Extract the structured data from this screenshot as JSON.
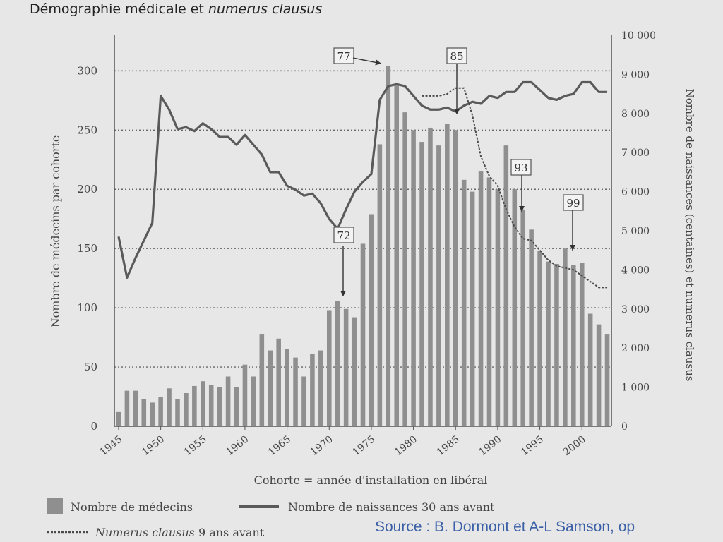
{
  "slide": {
    "title_plain": "Démographie médicale et ",
    "title_italic": "numerus clausus",
    "source": "Source : B. Dormont et A-L Samson, op"
  },
  "chart_data": {
    "type": "bar",
    "xlabel": "Cohorte = année d'installation en libéral",
    "ylabel": "Nombre de médecins par cohorte",
    "ylabel_right": "Nombre de naissances (centaines) et numerus clausus",
    "ylim": [
      0,
      330
    ],
    "ylim_right": [
      0,
      10000
    ],
    "yticks": [
      0,
      50,
      100,
      150,
      200,
      250,
      300
    ],
    "yticks_right": [
      0,
      1000,
      2000,
      3000,
      4000,
      5000,
      6000,
      7000,
      8000,
      9000,
      10000
    ],
    "yticks_right_labels": [
      "0",
      "1 000",
      "2 000",
      "3 000",
      "4 000",
      "5 000",
      "6 000",
      "7 000",
      "8 000",
      "9 000",
      "10 000"
    ],
    "xticks": [
      "1945",
      "1950",
      "1955",
      "1960",
      "1965",
      "1970",
      "1975",
      "1980",
      "1985",
      "1990",
      "1995",
      "2000"
    ],
    "grid": "dotted horizontal",
    "legend_position": "bottom",
    "years": [
      1945,
      1946,
      1947,
      1948,
      1949,
      1950,
      1951,
      1952,
      1953,
      1954,
      1955,
      1956,
      1957,
      1958,
      1959,
      1960,
      1961,
      1962,
      1963,
      1964,
      1965,
      1966,
      1967,
      1968,
      1969,
      1970,
      1971,
      1972,
      1973,
      1974,
      1975,
      1976,
      1977,
      1978,
      1979,
      1980,
      1981,
      1982,
      1983,
      1984,
      1985,
      1986,
      1987,
      1988,
      1989,
      1990,
      1991,
      1992,
      1993,
      1994,
      1995,
      1996,
      1997,
      1998,
      1999,
      2000,
      2001,
      2002,
      2003
    ],
    "series": [
      {
        "name": "Nombre de médecins",
        "type": "bar",
        "color": "#8f8f8f",
        "values": [
          12,
          30,
          30,
          23,
          20,
          25,
          32,
          23,
          28,
          34,
          38,
          35,
          33,
          42,
          33,
          52,
          42,
          78,
          64,
          74,
          65,
          58,
          42,
          61,
          64,
          98,
          106,
          99,
          92,
          154,
          179,
          238,
          304,
          288,
          265,
          250,
          240,
          252,
          237,
          255,
          250,
          208,
          198,
          215,
          210,
          200,
          237,
          200,
          183,
          166,
          148,
          139,
          137,
          150,
          136,
          138,
          95,
          86,
          78
        ]
      },
      {
        "name": "Nombre de naissances 30 ans avant",
        "type": "line",
        "color": "#5a5a5a",
        "x": [
          1945,
          1946,
          1947,
          1948,
          1949,
          1950,
          1951,
          1952,
          1953,
          1954,
          1955,
          1956,
          1957,
          1958,
          1959,
          1960,
          1961,
          1962,
          1963,
          1964,
          1965,
          1966,
          1967,
          1968,
          1969,
          1970,
          1971,
          1972,
          1973,
          1974,
          1975,
          1976,
          1977,
          1978,
          1979,
          1980,
          1981,
          1982,
          1983,
          1984,
          1985,
          1986,
          1987,
          1988,
          1989,
          1990,
          1991,
          1992,
          1993,
          1994,
          1995,
          1996,
          1997,
          1998,
          1999,
          2000,
          2001,
          2002,
          2003
        ],
        "values": [
          4850,
          3800,
          4300,
          4750,
          5200,
          8450,
          8100,
          7600,
          7650,
          7550,
          7750,
          7600,
          7400,
          7400,
          7200,
          7450,
          7200,
          6950,
          6500,
          6500,
          6150,
          6050,
          5900,
          5950,
          5700,
          5300,
          5050,
          5550,
          6000,
          6250,
          6450,
          8350,
          8700,
          8750,
          8700,
          8450,
          8200,
          8100,
          8100,
          8150,
          8050,
          8200,
          8300,
          8250,
          8450,
          8400,
          8550,
          8550,
          8800,
          8800,
          8600,
          8400,
          8350,
          8450,
          8500,
          8800,
          8800,
          8550,
          8550
        ]
      },
      {
        "name": "Numerus clausus 9 ans avant",
        "type": "dashed-line",
        "color": "#4a4a4a",
        "x": [
          1981,
          1982,
          1983,
          1984,
          1985,
          1986,
          1987,
          1988,
          1989,
          1990,
          1991,
          1992,
          1993,
          1994,
          1995,
          1996,
          1997,
          1998,
          1999,
          2000,
          2001,
          2002,
          2003
        ],
        "values": [
          8450,
          8450,
          8450,
          8500,
          8650,
          8650,
          7950,
          6900,
          6400,
          6150,
          5550,
          5100,
          4800,
          4750,
          4500,
          4250,
          4100,
          4050,
          4000,
          3850,
          3700,
          3550,
          3550
        ]
      }
    ],
    "annotations": [
      {
        "label": "77"
      },
      {
        "label": "85"
      },
      {
        "label": "72"
      },
      {
        "label": "93"
      },
      {
        "label": "99"
      }
    ]
  }
}
